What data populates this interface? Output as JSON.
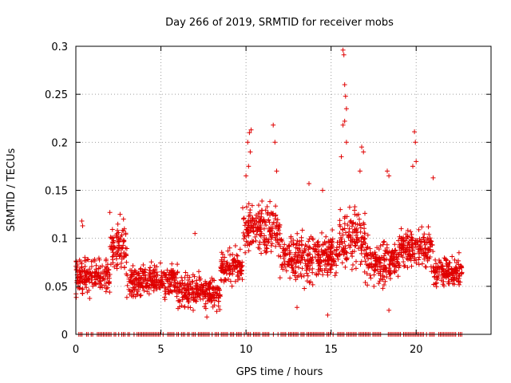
{
  "chart_data": {
    "type": "scatter",
    "title": "Day 266 of 2019, SRMTID for receiver mobs",
    "xlabel": "GPS time / hours",
    "ylabel": "SRMTID / TECUs",
    "xlim": [
      0,
      24.4
    ],
    "ylim": [
      0,
      0.3
    ],
    "x_ticks": [
      "0",
      "5",
      "10",
      "15",
      "20"
    ],
    "x_tick_values": [
      0,
      5,
      10,
      15,
      20
    ],
    "y_ticks": [
      "0",
      "0.05",
      "0.1",
      "0.15",
      "0.2",
      "0.25",
      "0.3"
    ],
    "y_tick_values": [
      0,
      0.05,
      0.1,
      0.15,
      0.2,
      0.25,
      0.3
    ],
    "grid": true,
    "marker": "+",
    "series_color": "#e00000",
    "trend_segments": [
      {
        "x_from": 0.0,
        "x_to": 2.0,
        "base": 0.06,
        "spread": 0.03
      },
      {
        "x_from": 2.0,
        "x_to": 3.0,
        "base": 0.09,
        "spread": 0.035
      },
      {
        "x_from": 3.0,
        "x_to": 6.0,
        "base": 0.055,
        "spread": 0.025
      },
      {
        "x_from": 6.0,
        "x_to": 8.5,
        "base": 0.045,
        "spread": 0.025
      },
      {
        "x_from": 8.5,
        "x_to": 9.8,
        "base": 0.07,
        "spread": 0.025
      },
      {
        "x_from": 9.8,
        "x_to": 12.0,
        "base": 0.11,
        "spread": 0.04
      },
      {
        "x_from": 12.0,
        "x_to": 15.5,
        "base": 0.08,
        "spread": 0.035
      },
      {
        "x_from": 15.5,
        "x_to": 17.0,
        "base": 0.1,
        "spread": 0.045
      },
      {
        "x_from": 17.0,
        "x_to": 19.0,
        "base": 0.075,
        "spread": 0.035
      },
      {
        "x_from": 19.0,
        "x_to": 21.0,
        "base": 0.09,
        "spread": 0.035
      },
      {
        "x_from": 21.0,
        "x_to": 22.7,
        "base": 0.065,
        "spread": 0.025
      }
    ],
    "highlight_points": [
      {
        "x": 0.35,
        "y": 0.118
      },
      {
        "x": 0.4,
        "y": 0.113
      },
      {
        "x": 2.0,
        "y": 0.127
      },
      {
        "x": 2.6,
        "y": 0.125
      },
      {
        "x": 2.8,
        "y": 0.12
      },
      {
        "x": 7.0,
        "y": 0.105
      },
      {
        "x": 7.7,
        "y": 0.018
      },
      {
        "x": 10.1,
        "y": 0.2
      },
      {
        "x": 10.2,
        "y": 0.21
      },
      {
        "x": 10.3,
        "y": 0.213
      },
      {
        "x": 10.25,
        "y": 0.19
      },
      {
        "x": 10.15,
        "y": 0.175
      },
      {
        "x": 10.0,
        "y": 0.165
      },
      {
        "x": 11.6,
        "y": 0.218
      },
      {
        "x": 11.7,
        "y": 0.2
      },
      {
        "x": 11.8,
        "y": 0.17
      },
      {
        "x": 15.7,
        "y": 0.296
      },
      {
        "x": 15.75,
        "y": 0.291
      },
      {
        "x": 15.8,
        "y": 0.26
      },
      {
        "x": 15.85,
        "y": 0.248
      },
      {
        "x": 15.9,
        "y": 0.235
      },
      {
        "x": 15.8,
        "y": 0.222
      },
      {
        "x": 15.7,
        "y": 0.218
      },
      {
        "x": 15.9,
        "y": 0.2
      },
      {
        "x": 15.6,
        "y": 0.185
      },
      {
        "x": 16.8,
        "y": 0.195
      },
      {
        "x": 16.9,
        "y": 0.19
      },
      {
        "x": 16.7,
        "y": 0.17
      },
      {
        "x": 18.3,
        "y": 0.17
      },
      {
        "x": 18.4,
        "y": 0.165
      },
      {
        "x": 19.9,
        "y": 0.211
      },
      {
        "x": 19.95,
        "y": 0.2
      },
      {
        "x": 20.0,
        "y": 0.18
      },
      {
        "x": 19.8,
        "y": 0.175
      },
      {
        "x": 21.0,
        "y": 0.163
      },
      {
        "x": 13.7,
        "y": 0.157
      },
      {
        "x": 14.5,
        "y": 0.15
      },
      {
        "x": 6.9,
        "y": 0.025
      },
      {
        "x": 13.0,
        "y": 0.028
      },
      {
        "x": 14.8,
        "y": 0.02
      },
      {
        "x": 18.4,
        "y": 0.025
      }
    ],
    "zero_band": {
      "y": 0,
      "x_from": 0,
      "x_to": 22.7,
      "note": "many samples at 0"
    }
  }
}
